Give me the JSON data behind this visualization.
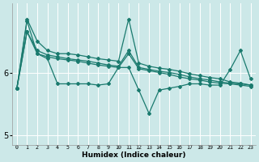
{
  "xlabel": "Humidex (Indice chaleur)",
  "bg_color": "#cce8e8",
  "line_color": "#1a7a6e",
  "grid_color": "#ffffff",
  "x_values": [
    0,
    1,
    2,
    3,
    4,
    5,
    6,
    7,
    8,
    9,
    10,
    11,
    12,
    13,
    14,
    15,
    16,
    17,
    18,
    19,
    20,
    21,
    22,
    23
  ],
  "line_top": [
    5.75,
    6.85,
    6.5,
    6.35,
    6.3,
    6.3,
    6.28,
    6.25,
    6.22,
    6.2,
    6.18,
    6.85,
    6.15,
    6.1,
    6.07,
    6.05,
    6.02,
    5.98,
    5.95,
    5.92,
    5.9,
    5.85,
    5.83,
    5.8
  ],
  "line_mid1": [
    5.75,
    6.65,
    6.35,
    6.28,
    6.25,
    6.22,
    6.2,
    6.18,
    6.15,
    6.12,
    6.1,
    6.35,
    6.08,
    6.05,
    6.02,
    6.0,
    5.97,
    5.93,
    5.9,
    5.88,
    5.85,
    5.83,
    5.82,
    5.8
  ],
  "line_mid2": [
    5.75,
    6.65,
    6.3,
    6.25,
    6.22,
    6.2,
    6.18,
    6.15,
    6.12,
    6.1,
    6.08,
    6.3,
    6.06,
    6.03,
    6.0,
    5.97,
    5.93,
    5.9,
    5.88,
    5.85,
    5.83,
    5.82,
    5.8,
    5.78
  ],
  "line_low": [
    5.75,
    6.82,
    6.3,
    6.22,
    5.82,
    5.82,
    5.82,
    5.82,
    5.8,
    5.82,
    6.08,
    6.08,
    5.72,
    5.35,
    5.72,
    5.75,
    5.78,
    5.82,
    5.82,
    5.8,
    5.8,
    6.05,
    6.35,
    5.9
  ],
  "ylim": [
    4.85,
    7.1
  ],
  "yticks": [
    5.0,
    6.0
  ],
  "xlim": [
    -0.5,
    23.5
  ]
}
